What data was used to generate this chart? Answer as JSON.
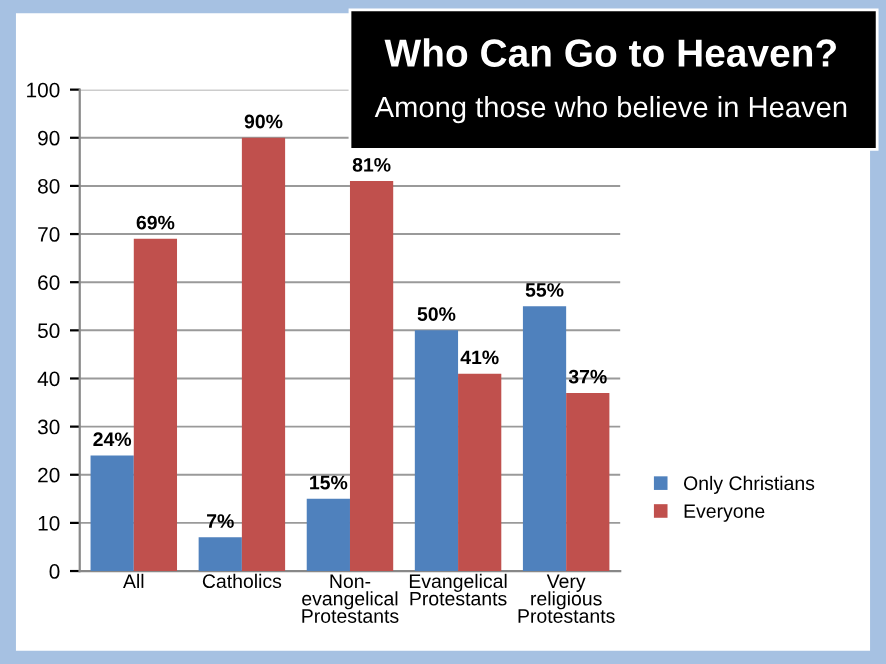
{
  "chart_data": {
    "type": "bar",
    "title": "Who Can Go to Heaven?",
    "subtitle": "Among those who believe in Heaven",
    "categories": [
      "All",
      "Catholics",
      "Non-\nevangelical\nProtestants",
      "Evangelical\nProtestants",
      "Very\nreligious\nProtestants"
    ],
    "series": [
      {
        "name": "Only Christians",
        "color": "#4f81bd",
        "values": [
          24,
          7,
          15,
          50,
          55
        ],
        "value_labels": [
          "24%",
          "7%",
          "15%",
          "50%",
          "55%"
        ]
      },
      {
        "name": "Everyone",
        "color": "#c0504d",
        "values": [
          69,
          90,
          81,
          41,
          37
        ],
        "value_labels": [
          "69%",
          "90%",
          "81%",
          "41%",
          "37%"
        ]
      }
    ],
    "ylim": [
      0,
      100
    ],
    "yticks": [
      0,
      10,
      20,
      30,
      40,
      50,
      60,
      70,
      80,
      90,
      100
    ],
    "grid": "y",
    "legend": "right"
  }
}
